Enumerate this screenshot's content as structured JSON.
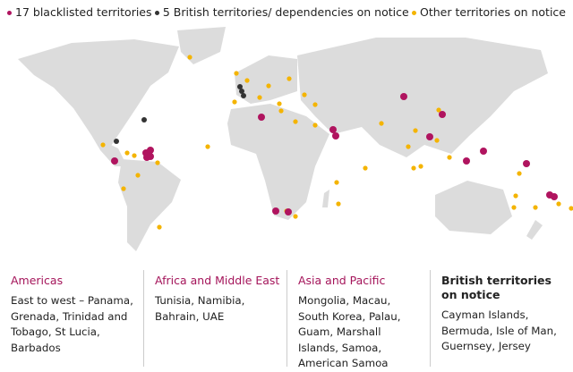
{
  "legend": [
    "17 blacklisted territories",
    "5 British territories/ dependencies on notice",
    "Other territories on notice"
  ],
  "regions": [
    {
      "title": "Americas",
      "lines": [
        "East to west – Panama,",
        "Grenada, Trinidad and",
        "Tobago, St Lucia,",
        "Barbados"
      ]
    },
    {
      "title": "Africa and Middle East",
      "lines": [
        "Tunisia, Namibia,",
        "Bahrain, UAE"
      ]
    },
    {
      "title": "Asia and Pacific",
      "lines": [
        "Mongolia, Macau,",
        "South Korea, Palau,",
        "Guam, Marshall",
        "Islands, Samoa,",
        "American Samoa"
      ]
    },
    {
      "title_lines": [
        "British territories",
        "on notice"
      ],
      "lines": [
        "Cayman Islands,",
        "Bermuda, Isle of Man,",
        "Guernsey, Jersey"
      ]
    }
  ]
}
